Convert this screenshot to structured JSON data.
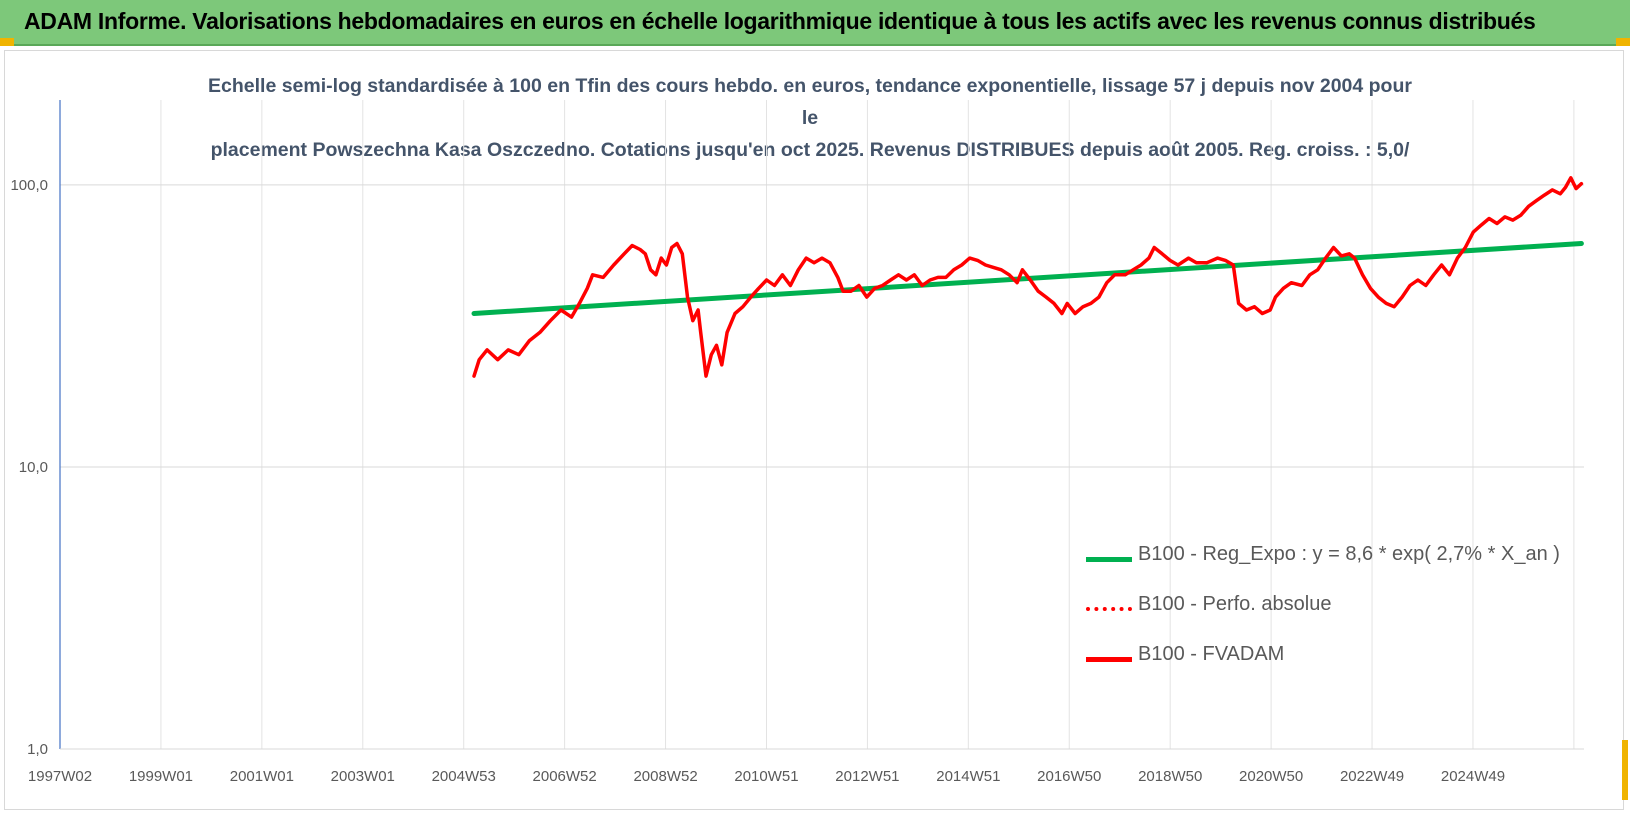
{
  "banner": {
    "title": "ADAM Informe. Valorisations hebdomadaires en euros en échelle logarithmique identique à tous les actifs avec les revenus connus distribués"
  },
  "chart_data": {
    "type": "line",
    "title": "",
    "subtitle_line1": "Echelle semi-log standardisée à 100 en Tfin des cours hebdo. en euros, tendance exponentielle, lissage 57 j depuis nov 2004 pour le",
    "subtitle_line2": "placement Powszechna Kasa Oszczedno. Cotations jusqu'en oct 2025. Revenus DISTRIBUES depuis août 2005. Reg. croiss. : 5,0/",
    "xlabel": "",
    "ylabel": "",
    "y_scale": "log",
    "ylim": [
      1,
      200
    ],
    "y_ticks": [
      1,
      10,
      100
    ],
    "y_tick_labels": [
      "1,0",
      "10,0",
      "100,0"
    ],
    "x_tick_labels": [
      "1997W02",
      "1999W01",
      "2001W01",
      "2003W01",
      "2004W53",
      "2006W52",
      "2008W52",
      "2010W51",
      "2012W51",
      "2014W51",
      "2016W50",
      "2018W50",
      "2020W50",
      "2022W49",
      "2024W49"
    ],
    "xlim": [
      1997.0,
      2025.9
    ],
    "grid": true,
    "legend_position": "bottom-right",
    "series": [
      {
        "name": "B100 - Reg_Expo : y = 8,6 * exp( 2,7% *  X_an )",
        "color": "#00b050",
        "style": "solid",
        "points": [
          [
            2004.85,
            35.0
          ],
          [
            2025.85,
            62.0
          ]
        ]
      },
      {
        "name": "B100 - Perfo. absolue",
        "color": "#ff0000",
        "style": "dotted",
        "points": []
      },
      {
        "name": "B100 - FVADAM",
        "color": "#ff0000",
        "style": "solid",
        "points": [
          [
            2004.85,
            21
          ],
          [
            2004.95,
            24
          ],
          [
            2005.1,
            26
          ],
          [
            2005.3,
            24
          ],
          [
            2005.5,
            26
          ],
          [
            2005.7,
            25
          ],
          [
            2005.9,
            28
          ],
          [
            2006.1,
            30
          ],
          [
            2006.3,
            33
          ],
          [
            2006.5,
            36
          ],
          [
            2006.7,
            34
          ],
          [
            2006.85,
            38
          ],
          [
            2007.0,
            43
          ],
          [
            2007.1,
            48
          ],
          [
            2007.3,
            47
          ],
          [
            2007.5,
            52
          ],
          [
            2007.7,
            57
          ],
          [
            2007.85,
            61
          ],
          [
            2008.0,
            59
          ],
          [
            2008.1,
            57
          ],
          [
            2008.2,
            50
          ],
          [
            2008.3,
            48
          ],
          [
            2008.4,
            55
          ],
          [
            2008.5,
            52
          ],
          [
            2008.6,
            60
          ],
          [
            2008.7,
            62
          ],
          [
            2008.8,
            57
          ],
          [
            2008.9,
            40
          ],
          [
            2009.0,
            33
          ],
          [
            2009.1,
            36
          ],
          [
            2009.15,
            30
          ],
          [
            2009.25,
            21
          ],
          [
            2009.35,
            25
          ],
          [
            2009.45,
            27
          ],
          [
            2009.55,
            23
          ],
          [
            2009.65,
            30
          ],
          [
            2009.8,
            35
          ],
          [
            2009.95,
            37
          ],
          [
            2010.1,
            40
          ],
          [
            2010.25,
            43
          ],
          [
            2010.4,
            46
          ],
          [
            2010.55,
            44
          ],
          [
            2010.7,
            48
          ],
          [
            2010.85,
            44
          ],
          [
            2011.0,
            50
          ],
          [
            2011.15,
            55
          ],
          [
            2011.3,
            53
          ],
          [
            2011.45,
            55
          ],
          [
            2011.6,
            53
          ],
          [
            2011.75,
            47
          ],
          [
            2011.85,
            42
          ],
          [
            2012.0,
            42
          ],
          [
            2012.15,
            44
          ],
          [
            2012.3,
            40
          ],
          [
            2012.45,
            43
          ],
          [
            2012.6,
            44
          ],
          [
            2012.75,
            46
          ],
          [
            2012.9,
            48
          ],
          [
            2013.05,
            46
          ],
          [
            2013.2,
            48
          ],
          [
            2013.35,
            44
          ],
          [
            2013.5,
            46
          ],
          [
            2013.65,
            47
          ],
          [
            2013.8,
            47
          ],
          [
            2013.95,
            50
          ],
          [
            2014.1,
            52
          ],
          [
            2014.25,
            55
          ],
          [
            2014.4,
            54
          ],
          [
            2014.55,
            52
          ],
          [
            2014.7,
            51
          ],
          [
            2014.85,
            50
          ],
          [
            2015.0,
            48
          ],
          [
            2015.15,
            45
          ],
          [
            2015.25,
            50
          ],
          [
            2015.4,
            46
          ],
          [
            2015.55,
            42
          ],
          [
            2015.7,
            40
          ],
          [
            2015.85,
            38
          ],
          [
            2016.0,
            35
          ],
          [
            2016.1,
            38
          ],
          [
            2016.25,
            35
          ],
          [
            2016.4,
            37
          ],
          [
            2016.55,
            38
          ],
          [
            2016.7,
            40
          ],
          [
            2016.85,
            45
          ],
          [
            2017.0,
            48
          ],
          [
            2017.2,
            48
          ],
          [
            2017.35,
            50
          ],
          [
            2017.5,
            52
          ],
          [
            2017.65,
            55
          ],
          [
            2017.75,
            60
          ],
          [
            2017.9,
            57
          ],
          [
            2018.05,
            54
          ],
          [
            2018.2,
            52
          ],
          [
            2018.4,
            55
          ],
          [
            2018.55,
            53
          ],
          [
            2018.75,
            53
          ],
          [
            2018.95,
            55
          ],
          [
            2019.1,
            54
          ],
          [
            2019.25,
            52
          ],
          [
            2019.35,
            38
          ],
          [
            2019.5,
            36
          ],
          [
            2019.65,
            37
          ],
          [
            2019.8,
            35
          ],
          [
            2019.95,
            36
          ],
          [
            2020.05,
            40
          ],
          [
            2020.2,
            43
          ],
          [
            2020.35,
            45
          ],
          [
            2020.55,
            44
          ],
          [
            2020.7,
            48
          ],
          [
            2020.85,
            50
          ],
          [
            2021.0,
            55
          ],
          [
            2021.15,
            60
          ],
          [
            2021.3,
            56
          ],
          [
            2021.45,
            57
          ],
          [
            2021.55,
            55
          ],
          [
            2021.7,
            48
          ],
          [
            2021.85,
            43
          ],
          [
            2022.0,
            40
          ],
          [
            2022.15,
            38
          ],
          [
            2022.3,
            37
          ],
          [
            2022.45,
            40
          ],
          [
            2022.6,
            44
          ],
          [
            2022.75,
            46
          ],
          [
            2022.9,
            44
          ],
          [
            2023.05,
            48
          ],
          [
            2023.2,
            52
          ],
          [
            2023.35,
            48
          ],
          [
            2023.5,
            55
          ],
          [
            2023.65,
            60
          ],
          [
            2023.8,
            68
          ],
          [
            2023.95,
            72
          ],
          [
            2024.1,
            76
          ],
          [
            2024.25,
            73
          ],
          [
            2024.4,
            77
          ],
          [
            2024.55,
            75
          ],
          [
            2024.7,
            78
          ],
          [
            2024.85,
            84
          ],
          [
            2025.0,
            88
          ],
          [
            2025.15,
            92
          ],
          [
            2025.3,
            96
          ],
          [
            2025.45,
            93
          ],
          [
            2025.55,
            98
          ],
          [
            2025.65,
            106
          ],
          [
            2025.75,
            97
          ],
          [
            2025.85,
            101
          ]
        ]
      }
    ]
  }
}
